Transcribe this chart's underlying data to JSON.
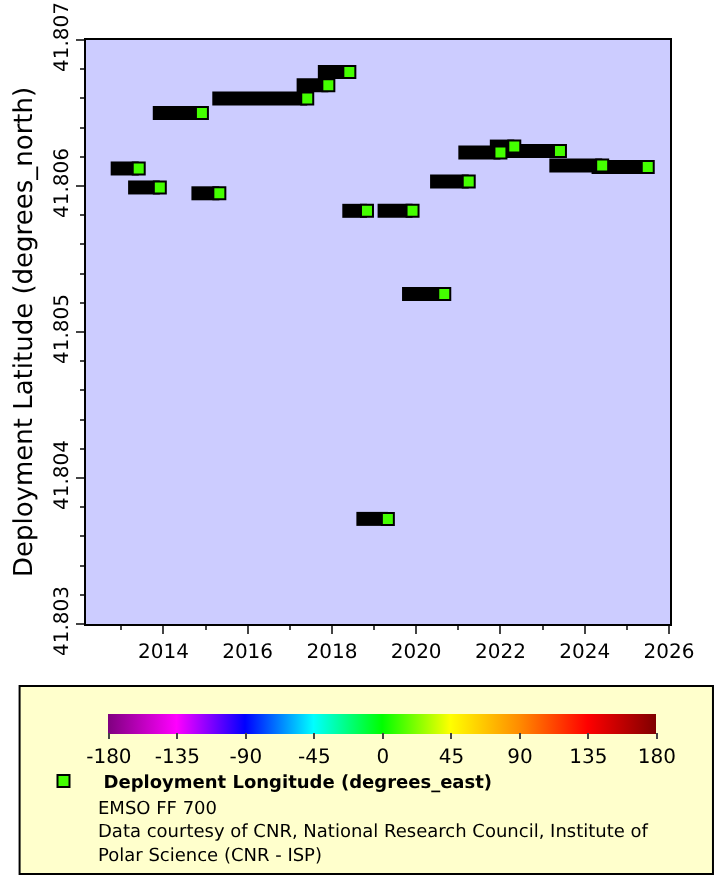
{
  "chart_data": {
    "type": "line",
    "ylabel": "Deployment Latitude (degrees_north)",
    "xlim": [
      "2012-03-01",
      "2026-01-10"
    ],
    "xticks": [
      "2014",
      "2016",
      "2018",
      "2020",
      "2022",
      "2024",
      "2026"
    ],
    "ylim": [
      41.803,
      41.807
    ],
    "yticks": [
      41.803,
      41.804,
      41.805,
      41.806,
      41.807
    ],
    "grid": false,
    "legend": "bottom",
    "clim": [
      -180,
      180
    ],
    "cticks": [
      -180,
      -135,
      -90,
      -45,
      0,
      45,
      90,
      135,
      180
    ],
    "annotations": [
      "EMSO FF 700",
      "Data courtesy of CNR, National Research Council, Institute of Polar Science (CNR - ISP)"
    ],
    "series": [
      {
        "type": "line",
        "color": "#000000",
        "x": [
          "2012-10",
          "2013-06"
        ],
        "values": [
          41.80612,
          41.80612
        ]
      },
      {
        "type": "line",
        "color": "#000000",
        "x": [
          "2013-03",
          "2013-12"
        ],
        "values": [
          41.80599,
          41.80599
        ]
      },
      {
        "type": "line",
        "color": "#000000",
        "x": [
          "2013-10",
          "2014-12"
        ],
        "values": [
          41.8065,
          41.8065
        ]
      },
      {
        "type": "line",
        "color": "#000000",
        "x": [
          "2014-09",
          "2015-05"
        ],
        "values": [
          41.80595,
          41.80595
        ]
      },
      {
        "type": "line",
        "color": "#000000",
        "x": [
          "2015-03",
          "2017-06"
        ],
        "values": [
          41.8066,
          41.8066
        ]
      },
      {
        "type": "line",
        "color": "#000000",
        "x": [
          "2017-03",
          "2017-12"
        ],
        "values": [
          41.80669,
          41.80669
        ]
      },
      {
        "type": "line",
        "color": "#000000",
        "x": [
          "2017-09",
          "2018-06"
        ],
        "values": [
          41.80678,
          41.80678
        ]
      },
      {
        "type": "line",
        "color": "#000000",
        "x": [
          "2018-04",
          "2018-11"
        ],
        "values": [
          41.80583,
          41.80583
        ]
      },
      {
        "type": "line",
        "color": "#000000",
        "x": [
          "2018-08",
          "2019-05"
        ],
        "values": [
          41.80372,
          41.80372
        ]
      },
      {
        "type": "line",
        "color": "#000000",
        "x": [
          "2019-02",
          "2019-12"
        ],
        "values": [
          41.80583,
          41.80583
        ]
      },
      {
        "type": "line",
        "color": "#000000",
        "x": [
          "2019-09",
          "2020-09"
        ],
        "values": [
          41.80526,
          41.80526
        ]
      },
      {
        "type": "line",
        "color": "#000000",
        "x": [
          "2020-05",
          "2021-04"
        ],
        "values": [
          41.80603,
          41.80603
        ]
      },
      {
        "type": "line",
        "color": "#000000",
        "x": [
          "2021-01",
          "2022-01"
        ],
        "values": [
          41.80623,
          41.80623
        ]
      },
      {
        "type": "line",
        "color": "#000000",
        "x": [
          "2021-10",
          "2022-05"
        ],
        "values": [
          41.80627,
          41.80627
        ]
      },
      {
        "type": "line",
        "color": "#000000",
        "x": [
          "2022-02",
          "2023-06"
        ],
        "values": [
          41.80624,
          41.80624
        ]
      },
      {
        "type": "line",
        "color": "#000000",
        "x": [
          "2023-03",
          "2024-06"
        ],
        "values": [
          41.80614,
          41.80614
        ]
      },
      {
        "type": "line",
        "color": "#000000",
        "x": [
          "2024-03",
          "2025-07"
        ],
        "values": [
          41.80613,
          41.80613
        ]
      },
      {
        "type": "scatter",
        "name": "Deployment Longitude (degrees_east)",
        "marker": "square",
        "x": [
          "2013-06",
          "2013-12",
          "2014-12",
          "2015-05",
          "2017-06",
          "2017-12",
          "2018-06",
          "2018-11",
          "2019-05",
          "2019-12",
          "2020-09",
          "2021-04",
          "2022-01",
          "2022-05",
          "2023-06",
          "2024-06",
          "2025-07"
        ],
        "values": [
          41.80612,
          41.80599,
          41.8065,
          41.80595,
          41.8066,
          41.80669,
          41.80678,
          41.80583,
          41.80372,
          41.80583,
          41.80526,
          41.80603,
          41.80623,
          41.80627,
          41.80624,
          41.80614,
          41.80613
        ],
        "cvalues": [
          12,
          12,
          12,
          12,
          12,
          12,
          12,
          12,
          12,
          12,
          12,
          12,
          12,
          12,
          12,
          12,
          12
        ]
      }
    ]
  }
}
